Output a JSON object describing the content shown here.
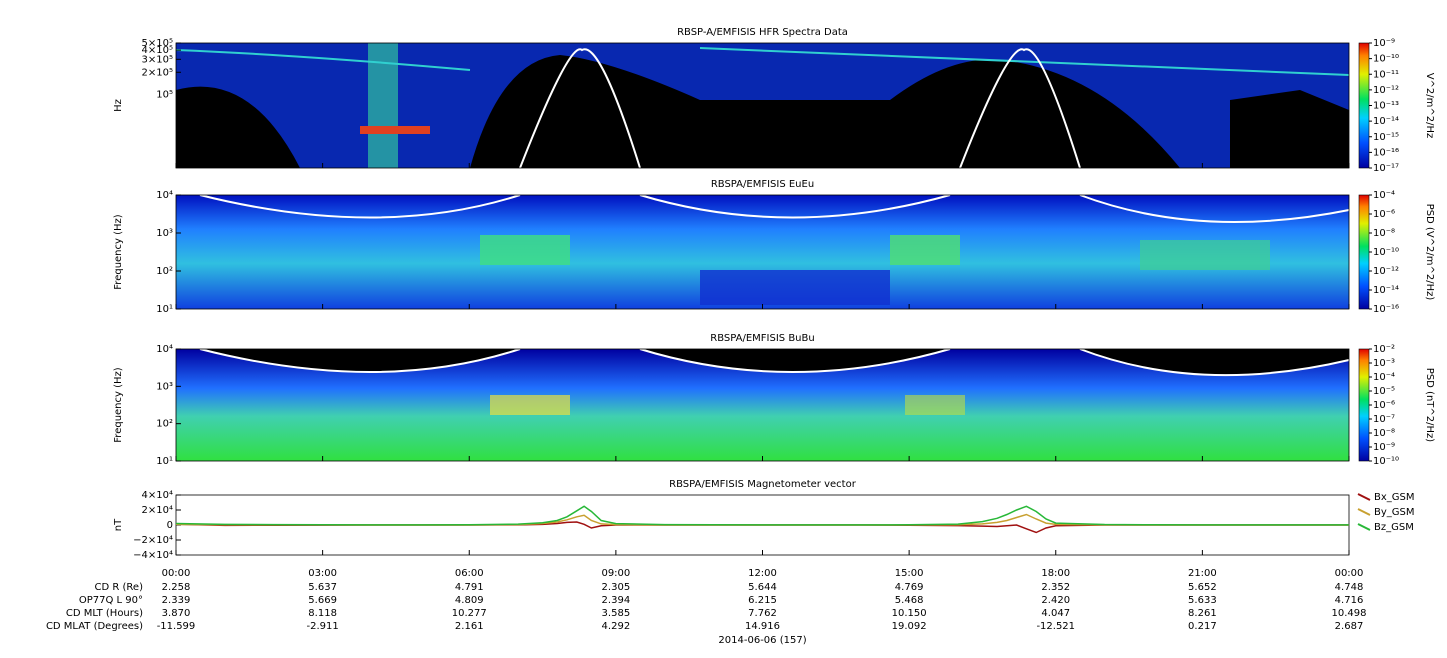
{
  "chart_data": [
    {
      "type": "spectrogram",
      "title": "RBSP-A/EMFISIS  HFR Spectra Data",
      "ylabel": "Hz",
      "xlim": [
        0,
        24
      ],
      "ylim": [
        10000,
        500000
      ],
      "log": true,
      "yticks": [
        {
          "value": 500000,
          "label": "5×10⁵"
        },
        {
          "value": 400000,
          "label": "4×10⁵"
        },
        {
          "value": 300000,
          "label": "3×10⁵"
        },
        {
          "value": 200000,
          "label": "2×10⁵"
        },
        {
          "value": 100000,
          "label": "10⁵"
        }
      ],
      "colorbar": {
        "label": "V^2/m^2/Hz",
        "lim": [
          1e-17,
          1e-09
        ],
        "ticks": [
          {
            "value": 1e-09,
            "label": "10⁻⁹"
          },
          {
            "value": 1e-10,
            "label": "10⁻¹⁰"
          },
          {
            "value": 1e-11,
            "label": "10⁻¹¹"
          },
          {
            "value": 1e-12,
            "label": "10⁻¹²"
          },
          {
            "value": 1e-13,
            "label": "10⁻¹³"
          },
          {
            "value": 1e-14,
            "label": "10⁻¹⁴"
          },
          {
            "value": 1e-15,
            "label": "10⁻¹⁵"
          },
          {
            "value": 1e-16,
            "label": "10⁻¹⁶"
          },
          {
            "value": 1e-17,
            "label": "10⁻¹⁷"
          }
        ]
      }
    },
    {
      "type": "spectrogram",
      "title": "RBSPA/EMFISIS  EuEu",
      "ylabel": "Frequency (Hz)",
      "xlim": [
        0,
        24
      ],
      "ylim": [
        10,
        10000
      ],
      "log": true,
      "yticks": [
        {
          "value": 10000,
          "label": "10⁴"
        },
        {
          "value": 1000,
          "label": "10³"
        },
        {
          "value": 100,
          "label": "10²"
        },
        {
          "value": 10,
          "label": "10¹"
        }
      ],
      "colorbar": {
        "label": "PSD (V^2/m^2/Hz)",
        "lim": [
          1e-16,
          0.0001
        ],
        "ticks": [
          {
            "value": 0.0001,
            "label": "10⁻⁴"
          },
          {
            "value": 1e-06,
            "label": "10⁻⁶"
          },
          {
            "value": 1e-08,
            "label": "10⁻⁸"
          },
          {
            "value": 1e-10,
            "label": "10⁻¹⁰"
          },
          {
            "value": 1e-12,
            "label": "10⁻¹²"
          },
          {
            "value": 1e-14,
            "label": "10⁻¹⁴"
          },
          {
            "value": 1e-16,
            "label": "10⁻¹⁶"
          }
        ]
      }
    },
    {
      "type": "spectrogram",
      "title": "RBSPA/EMFISIS  BuBu",
      "ylabel": "Frequency (Hz)",
      "xlim": [
        0,
        24
      ],
      "ylim": [
        10,
        10000
      ],
      "log": true,
      "yticks": [
        {
          "value": 10000,
          "label": "10⁴"
        },
        {
          "value": 1000,
          "label": "10³"
        },
        {
          "value": 100,
          "label": "10²"
        },
        {
          "value": 10,
          "label": "10¹"
        }
      ],
      "colorbar": {
        "label": "PSD (nT^2/Hz)",
        "lim": [
          1e-10,
          0.01
        ],
        "ticks": [
          {
            "value": 0.01,
            "label": "10⁻²"
          },
          {
            "value": 0.001,
            "label": "10⁻³"
          },
          {
            "value": 0.0001,
            "label": "10⁻⁴"
          },
          {
            "value": 1e-05,
            "label": "10⁻⁵"
          },
          {
            "value": 1e-06,
            "label": "10⁻⁶"
          },
          {
            "value": 1e-07,
            "label": "10⁻⁷"
          },
          {
            "value": 1e-08,
            "label": "10⁻⁸"
          },
          {
            "value": 1e-09,
            "label": "10⁻⁹"
          },
          {
            "value": 1e-10,
            "label": "10⁻¹⁰"
          }
        ]
      }
    },
    {
      "type": "line",
      "title": "RBSPA/EMFISIS  Magnetometer vector",
      "ylabel": "nT",
      "xlabel": "2014-06-06 (157)",
      "xlim": [
        0,
        24
      ],
      "ylim": [
        -40000,
        40000
      ],
      "yticks": [
        {
          "value": 40000,
          "label": "4×10⁴"
        },
        {
          "value": 20000,
          "label": "2×10⁴"
        },
        0,
        {
          "value": -20000,
          "label": "−2×10⁴"
        },
        {
          "value": -40000,
          "label": "−4×10⁴"
        }
      ],
      "xticks": [
        {
          "value": 0,
          "label": "00:00"
        },
        {
          "value": 3,
          "label": "03:00"
        },
        {
          "value": 6,
          "label": "06:00"
        },
        {
          "value": 9,
          "label": "09:00"
        },
        {
          "value": 12,
          "label": "12:00"
        },
        {
          "value": 15,
          "label": "15:00"
        },
        {
          "value": 18,
          "label": "18:00"
        },
        {
          "value": 21,
          "label": "21:00"
        },
        {
          "value": 24,
          "label": "00:00"
        }
      ],
      "x": [
        0,
        1,
        2,
        3,
        4,
        5,
        6,
        7,
        7.5,
        7.8,
        8,
        8.2,
        8.35,
        8.5,
        8.7,
        9,
        10,
        11,
        12,
        13,
        14,
        15,
        16,
        16.5,
        16.8,
        17,
        17.2,
        17.4,
        17.6,
        17.8,
        18,
        19,
        20,
        21,
        22,
        23,
        24
      ],
      "series": [
        {
          "name": "Bx_GSM",
          "color": "#a01010",
          "values": [
            1000,
            -500,
            -300,
            -100,
            0,
            0,
            0,
            200,
            800,
            2000,
            3500,
            4000,
            1000,
            -4000,
            -1000,
            0,
            0,
            0,
            0,
            0,
            0,
            -300,
            -800,
            -1500,
            -2000,
            -1000,
            0,
            -5000,
            -10000,
            -4000,
            -1000,
            0,
            0,
            0,
            0,
            0,
            0
          ]
        },
        {
          "name": "By_GSM",
          "color": "#c8a030",
          "values": [
            800,
            300,
            200,
            100,
            0,
            0,
            0,
            500,
            2000,
            4000,
            7000,
            11000,
            13000,
            6000,
            1500,
            500,
            0,
            0,
            0,
            0,
            0,
            0,
            300,
            1500,
            3500,
            6000,
            10000,
            14000,
            8000,
            2500,
            800,
            200,
            0,
            0,
            0,
            0,
            0
          ]
        },
        {
          "name": "Bz_GSM",
          "color": "#28b838",
          "values": [
            2000,
            800,
            500,
            300,
            200,
            200,
            300,
            1200,
            3000,
            6000,
            11000,
            19000,
            25000,
            18000,
            6000,
            1800,
            500,
            300,
            200,
            200,
            200,
            300,
            1200,
            4500,
            9000,
            14000,
            20000,
            25000,
            18000,
            8000,
            2500,
            700,
            300,
            200,
            200,
            200,
            200
          ]
        }
      ]
    }
  ],
  "ephemeris": {
    "rows": [
      {
        "label": "CD R (Re)",
        "values": [
          "2.258",
          "5.637",
          "4.791",
          "2.305",
          "5.644",
          "4.769",
          "2.352",
          "5.652",
          "4.748"
        ]
      },
      {
        "label": "OP77Q L 90°",
        "values": [
          "2.339",
          "5.669",
          "4.809",
          "2.394",
          "6.215",
          "5.468",
          "2.420",
          "5.633",
          "4.716"
        ]
      },
      {
        "label": "CD MLT (Hours)",
        "values": [
          "3.870",
          "8.118",
          "10.277",
          "3.585",
          "7.762",
          "10.150",
          "4.047",
          "8.261",
          "10.498"
        ]
      },
      {
        "label": "CD MLAT (Degrees)",
        "values": [
          "-11.599",
          "-2.911",
          "2.161",
          "4.292",
          "14.916",
          "19.092",
          "-12.521",
          "0.217",
          "2.687"
        ]
      }
    ]
  }
}
